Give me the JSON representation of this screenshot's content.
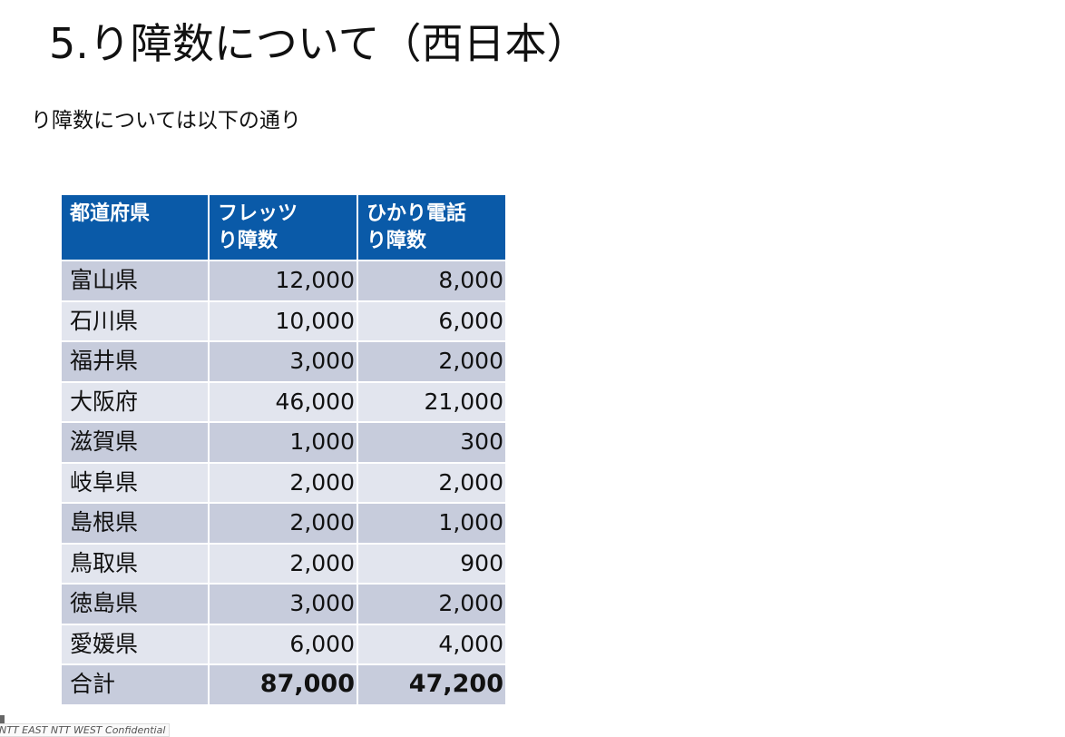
{
  "slide": {
    "title": "5.り障数について（西日本）",
    "subtitle": "り障数については以下の通り",
    "footer": "NTT EAST NTT WEST Confidential"
  },
  "table": {
    "headers": [
      "都道府県",
      "フレッツ\nり障数",
      "ひかり電話\nり障数"
    ],
    "header_lines": [
      [
        "都道府県"
      ],
      [
        "フレッツ",
        "り障数"
      ],
      [
        "ひかり電話",
        "り障数"
      ]
    ],
    "rows": [
      [
        "富山県",
        "12,000",
        "8,000"
      ],
      [
        "石川県",
        "10,000",
        "6,000"
      ],
      [
        "福井県",
        "3,000",
        "2,000"
      ],
      [
        "大阪府",
        "46,000",
        "21,000"
      ],
      [
        "滋賀県",
        "1,000",
        "300"
      ],
      [
        "岐阜県",
        "2,000",
        "2,000"
      ],
      [
        "島根県",
        "2,000",
        "1,000"
      ],
      [
        "鳥取県",
        "2,000",
        "900"
      ],
      [
        "徳島県",
        "3,000",
        "2,000"
      ],
      [
        "愛媛県",
        "6,000",
        "4,000"
      ]
    ],
    "total": [
      "合計",
      "87,000",
      "47,200"
    ],
    "colors": {
      "header": "#0a5aa8",
      "row_dark": "#c7ccdc",
      "row_light": "#e2e5ee"
    }
  }
}
